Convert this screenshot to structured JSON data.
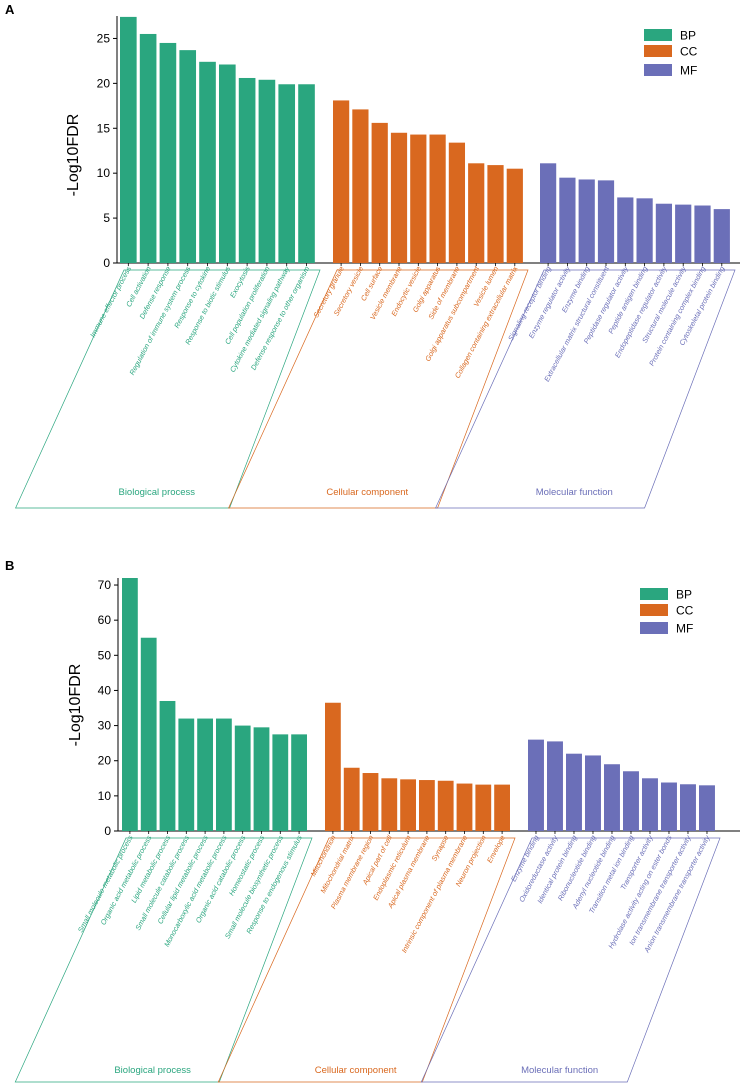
{
  "colors": {
    "BP": "#2aa67f",
    "CC": "#d9681f",
    "MF": "#6b6fb8"
  },
  "chart_data": [
    {
      "type": "bar",
      "panel": "A",
      "ylabel": "-Log10FDR",
      "ylim": [
        0,
        27.5
      ],
      "yticks": [
        0,
        5,
        10,
        15,
        20,
        25
      ],
      "legend": [
        "BP",
        "CC",
        "MF"
      ],
      "legend_position": "top-right",
      "groups": [
        {
          "key": "BP",
          "title": "Biological process",
          "categories": [
            "Immune effector process",
            "Cell activation",
            "Defense response",
            "Regulation of immune system process",
            "Response to cytokine",
            "Response to biotic stimulus",
            "Exocytosis",
            "Cell population proliferation",
            "Cytokine mediated signaling pathway",
            "Defense response to other organism"
          ],
          "values": [
            27.4,
            25.5,
            24.5,
            23.7,
            22.4,
            22.1,
            20.6,
            20.4,
            19.9,
            19.9
          ]
        },
        {
          "key": "CC",
          "title": "Cellular component",
          "categories": [
            "Secretory granule",
            "Secretory vesicle",
            "Cell surface",
            "Vesicle membrane",
            "Endocytic vesicle",
            "Golgi apparatus",
            "Side of membrane",
            "Golgi apparatus subcompartment",
            "Vesicle lumen",
            "Collagen containing extracellular matrix"
          ],
          "values": [
            18.1,
            17.1,
            15.6,
            14.5,
            14.3,
            14.3,
            13.4,
            11.1,
            10.9,
            10.5
          ]
        },
        {
          "key": "MF",
          "title": "Molecular function",
          "categories": [
            "Signaling receptor binding",
            "Enzyme regulator activity",
            "Enzyme binding",
            "Extracellular matrix structural constituent",
            "Peptidase regulator activity",
            "Peptide antigen binding",
            "Endopeptidase regulator activity",
            "Structural molecule activity",
            "Protein containing complex binding",
            "Cytoskeletal protein binding"
          ],
          "values": [
            11.1,
            9.5,
            9.3,
            9.2,
            7.3,
            7.2,
            6.6,
            6.5,
            6.4,
            6.0
          ]
        }
      ]
    },
    {
      "type": "bar",
      "panel": "B",
      "ylabel": "-Log10FDR",
      "ylim": [
        0,
        72
      ],
      "yticks": [
        0,
        10,
        20,
        30,
        40,
        50,
        60,
        70
      ],
      "legend": [
        "BP",
        "CC",
        "MF"
      ],
      "legend_position": "top-right",
      "groups": [
        {
          "key": "BP",
          "title": "Biological process",
          "categories": [
            "Small molecule metabolic process",
            "Organic acid metabolic process",
            "Lipid metabolic process",
            "Small molecule catabolic process",
            "Cellular lipid metabolic process",
            "Monocarboxylic acid metabolic process",
            "Organic acid catabolic process",
            "Homeostatic process",
            "Small molecule biosynthetic process",
            "Response to endogenous stimulus"
          ],
          "values": [
            72,
            55,
            37,
            32,
            32,
            32,
            30,
            29.5,
            27.5,
            27.5
          ]
        },
        {
          "key": "CC",
          "title": "Cellular component",
          "categories": [
            "Mitochondrion",
            "Mitochondrial matrix",
            "Plasma membrane region",
            "Apical part of cell",
            "Endoplasmic reticulum",
            "Apical plasma membrane",
            "Synapse",
            "Intrinsic component of plasma membrane",
            "Neuron projection",
            "Envelope"
          ],
          "values": [
            36.5,
            18,
            16.5,
            15,
            14.7,
            14.5,
            14.3,
            13.5,
            13.2,
            13.2
          ]
        },
        {
          "key": "MF",
          "title": "Molecular function",
          "categories": [
            "Enzyme binding",
            "Oxidoreductase activity",
            "Identical protein binding",
            "Ribonucleotide binding",
            "Adenyl nucleotide binding",
            "Transition metal ion binding",
            "Transporter activity",
            "Hydrolase activity acting on ester bonds",
            "Ion transmembrane transporter activity",
            "Anion transmembrane transporter activity"
          ],
          "values": [
            26,
            25.5,
            22,
            21.5,
            19,
            17,
            15,
            13.8,
            13.3,
            13
          ]
        }
      ]
    }
  ]
}
